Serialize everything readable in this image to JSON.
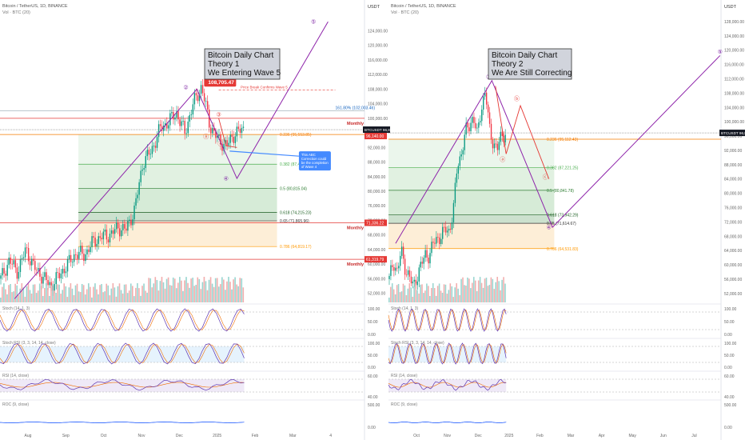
{
  "left": {
    "symbol": "Bitcoin / TetherUS, 1D, BINANCE",
    "vol": "Vol · BTC (20)",
    "currency": "USDT",
    "title": [
      "Bitcoin Daily Chart",
      "Theory 1",
      "We Entering Wave 5"
    ],
    "price_tag": "BTCUSDT 96,884.75",
    "price_tag2": "96,140.00",
    "monthly": [
      {
        "label": "Monthly",
        "value": 100000
      },
      {
        "label": "Monthly",
        "value": 71336.22,
        "tag": "71,336.22"
      },
      {
        "label": "Monthly",
        "value": 61319.79,
        "tag": "61,319.79"
      }
    ],
    "ath_tag": "108,705.47",
    "ath_value": 108705.47,
    "break_note": "Price Break Confirms Wave 5",
    "ext_label": "161.80% (102,003.46)",
    "ext_value": 102003.46,
    "fibs": [
      {
        "label": "0.236 (95,553.85)",
        "value": 95553.85,
        "color": "#f57c00"
      },
      {
        "label": "0.382 (87,410.83)",
        "value": 87410.83,
        "color": "#4caf50"
      },
      {
        "label": "0.5 (80,815.04)",
        "value": 80815.04,
        "color": "#2e7d32"
      },
      {
        "label": "0.618 (74,215.23)",
        "value": 74215.23,
        "color": "#1b5e20"
      },
      {
        "label": "0.65 (71,865.96)",
        "value": 71865.96,
        "color": "#333333"
      },
      {
        "label": "0.786 (64,819.17)",
        "value": 64819.17,
        "color": "#ff9800"
      }
    ],
    "callout": "This ABC Correction could be the completion of Wave 4",
    "waves": [
      {
        "label": "②",
        "x": 0.51,
        "value": 108000,
        "color": "#7b1fa2"
      },
      {
        "label": "③",
        "x": 0.6,
        "value": 100500,
        "color": "#e53935"
      },
      {
        "label": "ⓐ",
        "x": 0.565,
        "value": 94500,
        "color": "#e53935"
      },
      {
        "label": "ⓒ",
        "x": 0.605,
        "value": 92500,
        "color": "#e53935"
      },
      {
        "label": "④",
        "x": 0.62,
        "value": 83000,
        "color": "#7b1fa2"
      },
      {
        "label": "⑤",
        "x": 0.86,
        "value": 126000,
        "color": "#7b1fa2"
      }
    ],
    "axis": [
      "124,000.00",
      "120,000.00",
      "116,000.00",
      "112,000.00",
      "108,000.00",
      "104,000.00",
      "100,000.00",
      "96,000.00",
      "92,000.00",
      "88,000.00",
      "84,000.00",
      "80,000.00",
      "76,000.00",
      "72,000.00",
      "68,000.00",
      "64,000.00",
      "60,000.00",
      "56,000.00",
      "52,000.00"
    ],
    "months": [
      "Aug",
      "Sep",
      "Oct",
      "Nov",
      "Dec",
      "2025",
      "Feb",
      "Mar",
      "4"
    ],
    "indicators": [
      {
        "name": "Stoch (14, 1, 3)",
        "ticks": [
          "100.00",
          "50.00",
          "0.00"
        ]
      },
      {
        "name": "Stoch RSI (3, 3, 14, 14, close)",
        "ticks": [
          "100.00",
          "50.00",
          "0.00"
        ]
      },
      {
        "name": "RSI (14, close)",
        "ticks": [
          "60.00",
          "40.00"
        ]
      },
      {
        "name": "ROC (9, close)",
        "ticks": [
          "500.00",
          "0.00"
        ]
      }
    ]
  },
  "right": {
    "symbol": "Bitcoin / TetherUS, 1D, BINANCE",
    "vol": "Vol · BTC (20)",
    "currency": "USDT",
    "title": [
      "Bitcoin Daily Chart",
      "Theory 2",
      "We Are Still Correcting"
    ],
    "price_tag": "BTCUSDT 96,884.75",
    "fibs": [
      {
        "label": "0.236 (95,112.43)",
        "value": 95112.43,
        "color": "#f57c00"
      },
      {
        "label": "0.382 (87,221.25)",
        "value": 87221.25,
        "color": "#4caf50"
      },
      {
        "label": "0.5 (80,841.78)",
        "value": 80841.78,
        "color": "#2e7d32"
      },
      {
        "label": "0.618 (73,942.29)",
        "value": 73942.29,
        "color": "#1b5e20"
      },
      {
        "label": "0.65 (71,614.67)",
        "value": 71614.67,
        "color": "#333333"
      },
      {
        "label": "0.786 (64,531.83)",
        "value": 64531.83,
        "color": "#ff9800"
      }
    ],
    "waves": [
      {
        "label": "③",
        "x": 0.28,
        "value": 112000,
        "color": "#7b1fa2"
      },
      {
        "label": "ⓑ",
        "x": 0.36,
        "value": 106000,
        "color": "#e53935"
      },
      {
        "label": "ⓐ",
        "x": 0.32,
        "value": 89000,
        "color": "#e53935"
      },
      {
        "label": "ⓒ",
        "x": 0.44,
        "value": 84000,
        "color": "#e53935"
      },
      {
        "label": "④",
        "x": 0.45,
        "value": 70000,
        "color": "#7b1fa2"
      },
      {
        "label": "⑤",
        "x": 0.93,
        "value": 119000,
        "color": "#7b1fa2"
      }
    ],
    "axis": [
      "128,000.00",
      "124,000.00",
      "120,000.00",
      "116,000.00",
      "112,000.00",
      "108,000.00",
      "104,000.00",
      "100,000.00",
      "96,000.00",
      "92,000.00",
      "88,000.00",
      "84,000.00",
      "80,000.00",
      "76,000.00",
      "72,000.00",
      "68,000.00",
      "64,000.00",
      "60,000.00",
      "56,000.00",
      "52,000.00"
    ],
    "months": [
      "Oct",
      "Nov",
      "Dec",
      "2025",
      "Feb",
      "Mar",
      "Apr",
      "May",
      "Jun",
      "Jul"
    ],
    "indicators": [
      {
        "name": "Stoch (14, 1, 3)",
        "ticks": [
          "100.00",
          "50.00",
          "0.00"
        ]
      },
      {
        "name": "Stoch RSI (3, 3, 14, 14, close)",
        "ticks": [
          "100.00",
          "50.00",
          "0.00"
        ]
      },
      {
        "name": "RSI (14, close)",
        "ticks": [
          "60.00",
          "40.00"
        ]
      },
      {
        "name": "ROC (9, close)",
        "ticks": [
          "500.00",
          "0.00"
        ]
      }
    ]
  },
  "chart_data": {
    "type": "line",
    "title": "",
    "xlabel": "",
    "ylabel": "",
    "ylim": [
      49000,
      130000
    ],
    "grid": false,
    "series": [
      {
        "name": "BTCUSDT",
        "values": [
          56000,
          61000,
          58000,
          64000,
          59000,
          56500,
          54000,
          57000,
          60000,
          63000,
          62500,
          66000,
          67500,
          68000,
          70000,
          69500,
          75000,
          88000,
          91000,
          97000,
          99000,
          101500,
          96000,
          104000,
          108705,
          98000,
          94000,
          92500,
          96000,
          96884
        ]
      }
    ]
  }
}
